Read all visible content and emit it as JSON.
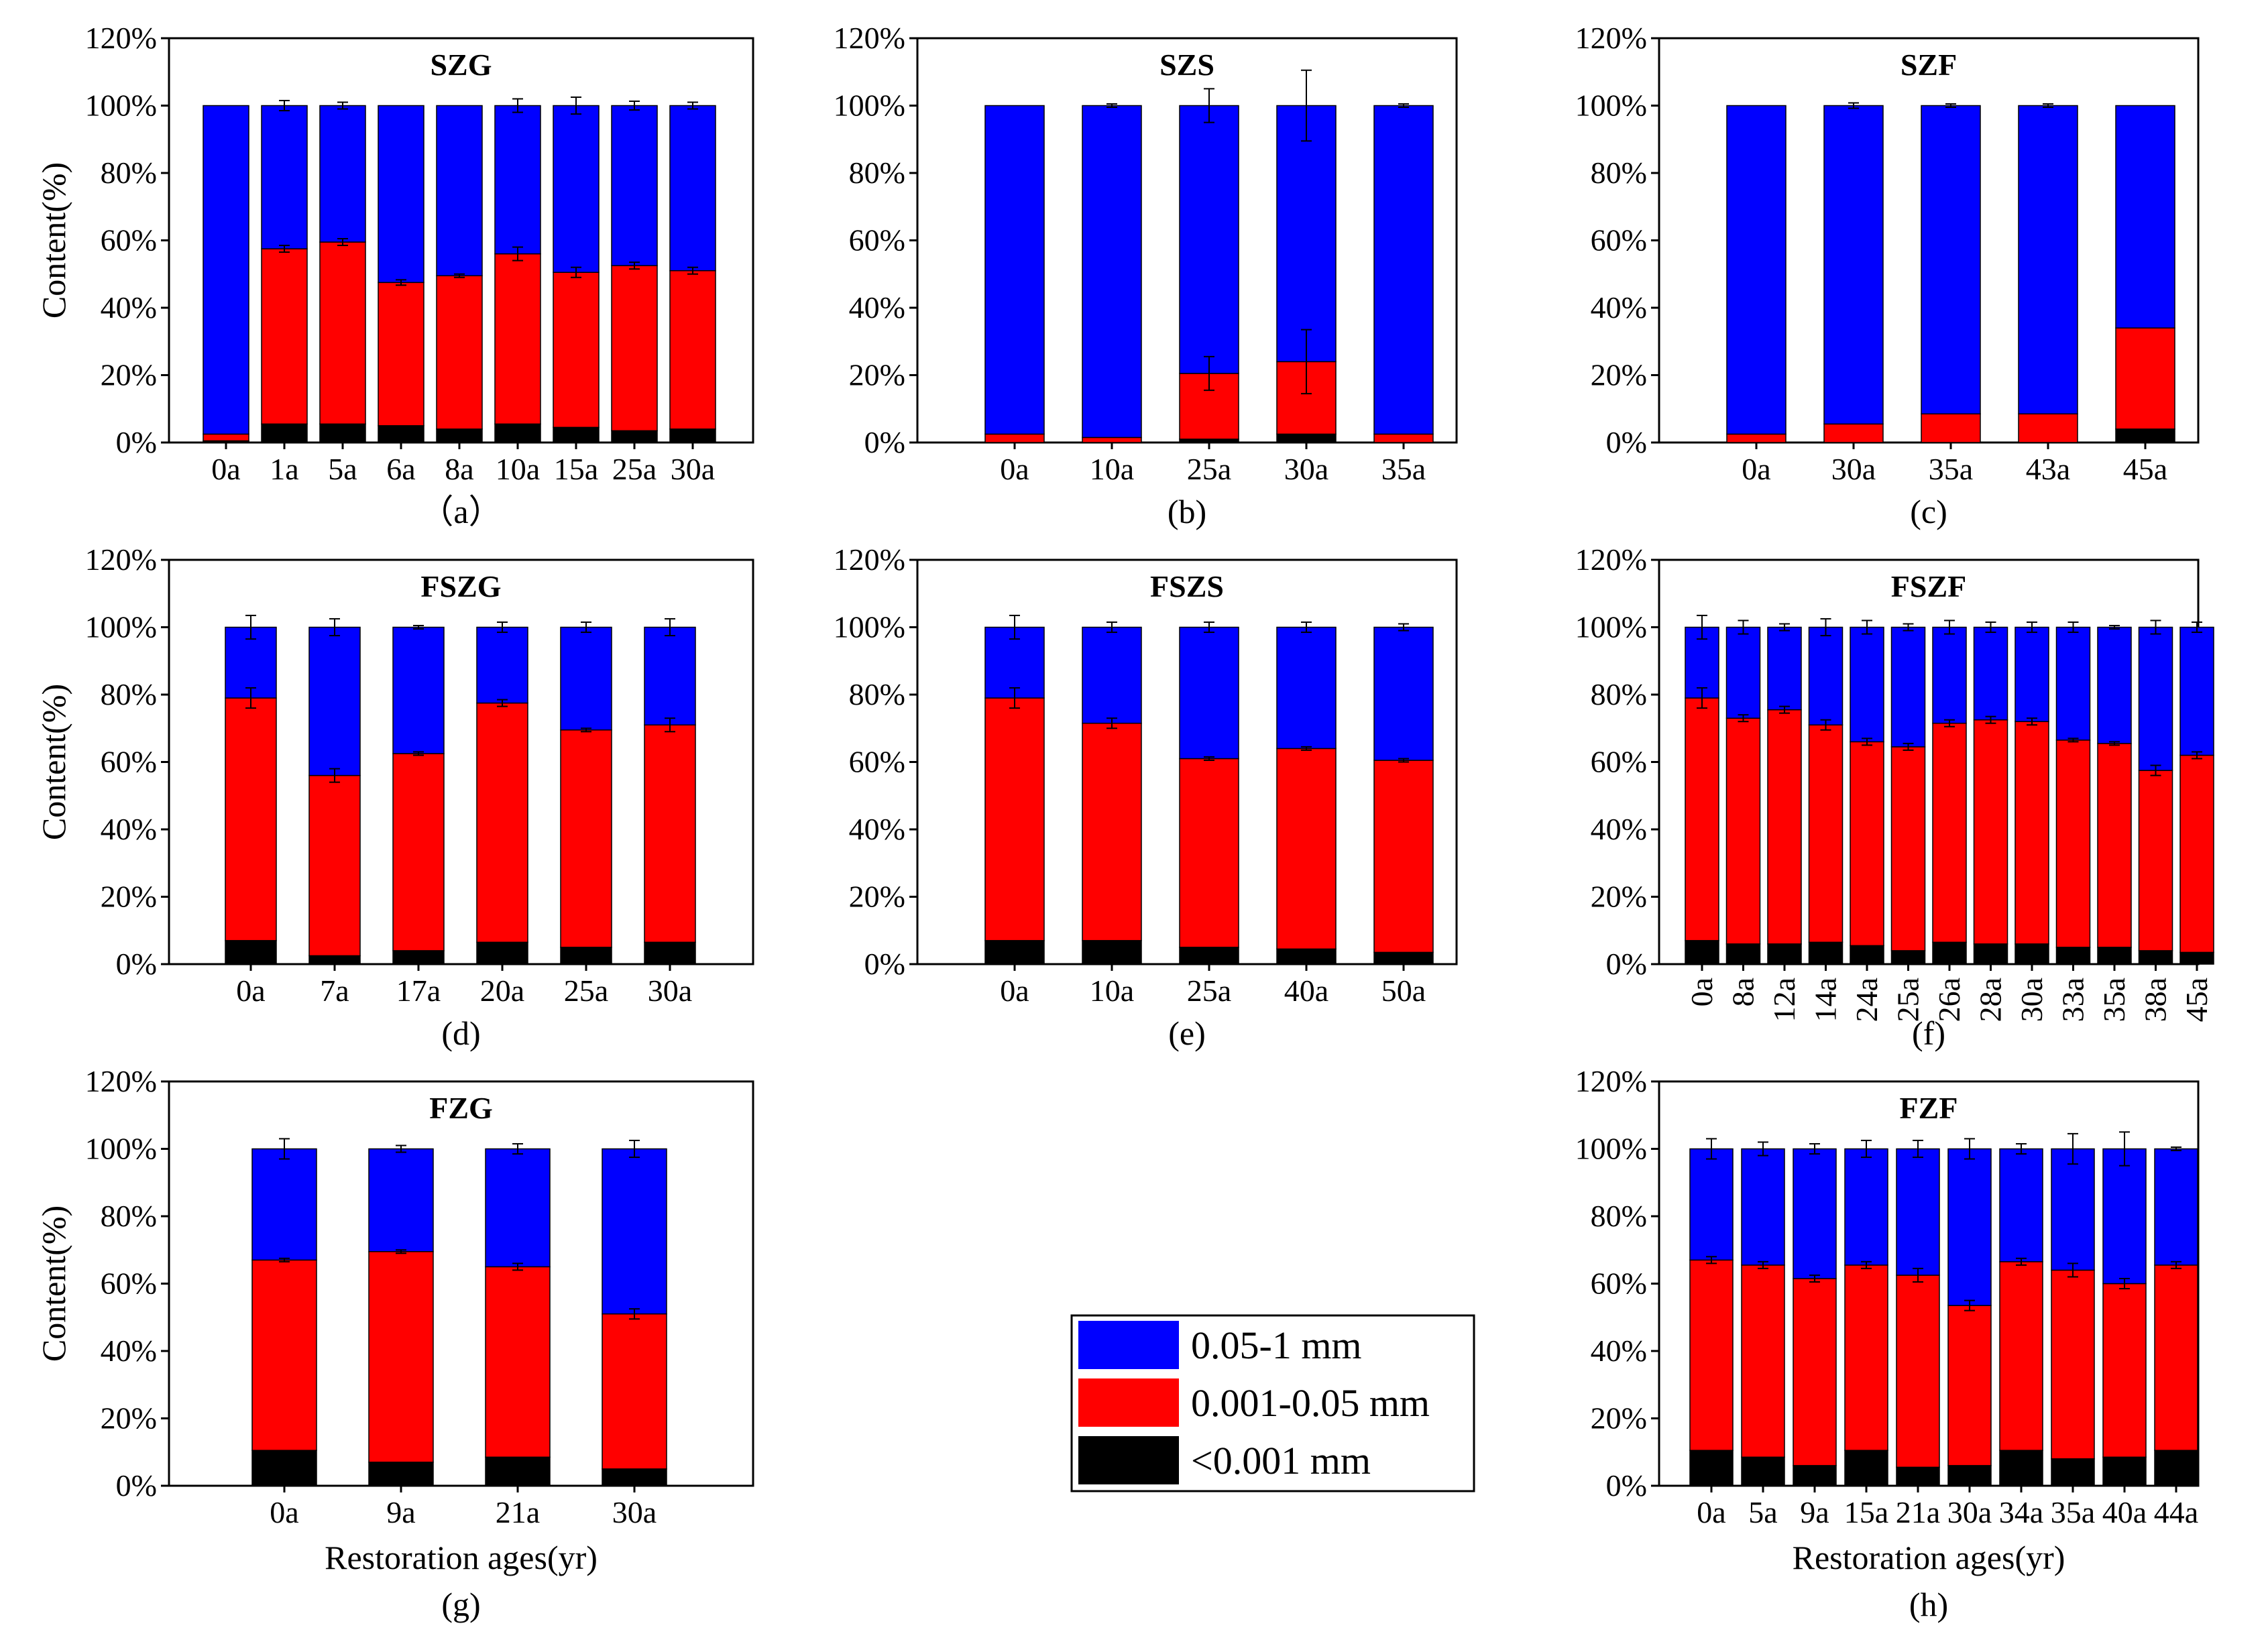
{
  "colors": {
    "fine": "#000000",
    "silt": "#ff0000",
    "sand": "#0000ff",
    "frame": "#000000",
    "background": "#ffffff"
  },
  "yTickLabels": [
    "0%",
    "20%",
    "40%",
    "60%",
    "80%",
    "100%",
    "120%"
  ],
  "ylabel": "Content(%)",
  "xlabel": "Restoration ages(yr)",
  "legend": {
    "items": [
      {
        "label": "0.05-1 mm",
        "color": "#0000ff"
      },
      {
        "label": "0.001-0.05 mm",
        "color": "#ff0000"
      },
      {
        "label": "<0.001 mm",
        "color": "#000000"
      }
    ]
  },
  "chart_data": [
    {
      "type": "bar",
      "stacked": true,
      "title": "SZG",
      "caption": "（a）",
      "ylim": [
        0,
        120
      ],
      "categories": [
        "0a",
        "1a",
        "5a",
        "6a",
        "8a",
        "10a",
        "15a",
        "25a",
        "30a"
      ],
      "series": [
        {
          "name": "<0.001 mm",
          "values": [
            0.5,
            5.5,
            5.5,
            5,
            4,
            5.5,
            4.5,
            3.5,
            4
          ]
        },
        {
          "name": "0.001-0.05 mm",
          "values": [
            2,
            52,
            54,
            42.5,
            45.5,
            50.5,
            46,
            49,
            47
          ]
        },
        {
          "name": "0.05-1 mm",
          "values": [
            97.5,
            42.5,
            40.5,
            52.5,
            50.5,
            44,
            49.5,
            47.5,
            49
          ]
        }
      ],
      "error_top": [
        0,
        1.5,
        1,
        0,
        0,
        2,
        2.5,
        1.3,
        1
      ],
      "error_mid": [
        0,
        1,
        1,
        0.8,
        0.5,
        2,
        1.5,
        1,
        1
      ]
    },
    {
      "type": "bar",
      "stacked": true,
      "title": "SZS",
      "caption": "(b)",
      "ylim": [
        0,
        120
      ],
      "categories": [
        "0a",
        "10a",
        "25a",
        "30a",
        "35a"
      ],
      "series": [
        {
          "name": "<0.001 mm",
          "values": [
            0,
            0,
            1,
            2.5,
            0
          ]
        },
        {
          "name": "0.001-0.05 mm",
          "values": [
            2.5,
            1.5,
            19.5,
            21.5,
            2.5
          ]
        },
        {
          "name": "0.05-1 mm",
          "values": [
            97.5,
            98.5,
            79.5,
            76,
            97.5
          ]
        }
      ],
      "error_top": [
        0,
        0.5,
        5,
        10.5,
        0.5
      ],
      "error_mid": [
        0,
        0,
        5,
        9.5,
        0
      ]
    },
    {
      "type": "bar",
      "stacked": true,
      "title": "SZF",
      "caption": "(c)",
      "ylim": [
        0,
        120
      ],
      "categories": [
        "0a",
        "30a",
        "35a",
        "43a",
        "45a"
      ],
      "series": [
        {
          "name": "<0.001 mm",
          "values": [
            0,
            0,
            0,
            0,
            4
          ]
        },
        {
          "name": "0.001-0.05 mm",
          "values": [
            2.5,
            5.5,
            8.5,
            8.5,
            30
          ]
        },
        {
          "name": "0.05-1 mm",
          "values": [
            97.5,
            94.5,
            91.5,
            91.5,
            66
          ]
        }
      ],
      "error_top": [
        0,
        0.8,
        0.5,
        0.5,
        0
      ],
      "error_mid": [
        0,
        0,
        0,
        0,
        0
      ]
    },
    {
      "type": "bar",
      "stacked": true,
      "title": "FSZG",
      "caption": "(d)",
      "ylim": [
        0,
        120
      ],
      "categories": [
        "0a",
        "7a",
        "17a",
        "20a",
        "25a",
        "30a"
      ],
      "series": [
        {
          "name": "<0.001 mm",
          "values": [
            7,
            2.5,
            4,
            6.5,
            5,
            6.5
          ]
        },
        {
          "name": "0.001-0.05 mm",
          "values": [
            72,
            53.5,
            58.5,
            71,
            64.5,
            64.5
          ]
        },
        {
          "name": "0.05-1 mm",
          "values": [
            21,
            44,
            37.5,
            22.5,
            30.5,
            29
          ]
        }
      ],
      "error_top": [
        3.5,
        2.5,
        0.5,
        1.5,
        1.5,
        2.5
      ],
      "error_mid": [
        3,
        2,
        0.5,
        1,
        0.5,
        2
      ]
    },
    {
      "type": "bar",
      "stacked": true,
      "title": "FSZS",
      "caption": "(e)",
      "ylim": [
        0,
        120
      ],
      "categories": [
        "0a",
        "10a",
        "25a",
        "40a",
        "50a"
      ],
      "series": [
        {
          "name": "<0.001 mm",
          "values": [
            7,
            7,
            5,
            4.5,
            3.5
          ]
        },
        {
          "name": "0.001-0.05 mm",
          "values": [
            72,
            64.5,
            56,
            59.5,
            57
          ]
        },
        {
          "name": "0.05-1 mm",
          "values": [
            21,
            28.5,
            39,
            36,
            39.5
          ]
        }
      ],
      "error_top": [
        3.5,
        1.5,
        1.5,
        1.5,
        1
      ],
      "error_mid": [
        3,
        1.5,
        0.5,
        0.5,
        0.5
      ]
    },
    {
      "type": "bar",
      "stacked": true,
      "title": "FSZF",
      "caption": "(f)",
      "ylim": [
        0,
        120
      ],
      "x_tick_rotation": -90,
      "categories": [
        "0a",
        "8a",
        "12a",
        "14a",
        "24a",
        "25a",
        "26a",
        "28a",
        "30a",
        "33a",
        "35a",
        "38a",
        "45a"
      ],
      "series": [
        {
          "name": "<0.001 mm",
          "values": [
            7,
            6,
            6,
            6.5,
            5.5,
            4,
            6.5,
            6,
            6,
            5,
            5,
            4,
            3.5
          ]
        },
        {
          "name": "0.001-0.05 mm",
          "values": [
            72,
            67,
            69.5,
            64.5,
            60.5,
            60.5,
            65,
            66.5,
            66,
            61.5,
            60.5,
            53.5,
            58.5
          ]
        },
        {
          "name": "0.05-1 mm",
          "values": [
            21,
            27,
            24.5,
            29,
            34,
            35.5,
            28.5,
            27.5,
            28,
            33.5,
            34.5,
            42.5,
            38
          ]
        }
      ],
      "error_top": [
        3.5,
        2,
        1,
        2.5,
        2,
        1,
        2,
        1.5,
        1.5,
        1.5,
        0.5,
        2,
        1.5
      ],
      "error_mid": [
        3,
        1,
        1,
        1.5,
        1,
        1,
        1,
        1,
        1,
        0.5,
        0.5,
        1.5,
        1
      ]
    },
    {
      "type": "bar",
      "stacked": true,
      "title": "FZG",
      "caption": "(g)",
      "ylim": [
        0,
        120
      ],
      "xlabel": "Restoration ages(yr)",
      "categories": [
        "0a",
        "9a",
        "21a",
        "30a"
      ],
      "series": [
        {
          "name": "<0.001 mm",
          "values": [
            10.5,
            7,
            8.5,
            5
          ]
        },
        {
          "name": "0.001-0.05 mm",
          "values": [
            56.5,
            62.5,
            56.5,
            46
          ]
        },
        {
          "name": "0.05-1 mm",
          "values": [
            33,
            30.5,
            35,
            49
          ]
        }
      ],
      "error_top": [
        3,
        1,
        1.5,
        2.5
      ],
      "error_mid": [
        0.5,
        0.5,
        1,
        1.5
      ]
    },
    {
      "type": "bar",
      "stacked": true,
      "title": "FZF",
      "caption": "(h)",
      "ylim": [
        0,
        120
      ],
      "xlabel": "Restoration ages(yr)",
      "categories": [
        "0a",
        "5a",
        "9a",
        "15a",
        "21a",
        "30a",
        "34a",
        "35a",
        "40a",
        "44a"
      ],
      "series": [
        {
          "name": "<0.001 mm",
          "values": [
            10.5,
            8.5,
            6,
            10.5,
            5.5,
            6,
            10.5,
            8,
            8.5,
            10.5
          ]
        },
        {
          "name": "0.001-0.05 mm",
          "values": [
            56.5,
            57,
            55.5,
            55,
            57,
            47.5,
            56,
            56,
            51.5,
            55
          ]
        },
        {
          "name": "0.05-1 mm",
          "values": [
            33,
            34.5,
            38.5,
            34.5,
            37.5,
            46.5,
            33.5,
            36,
            40,
            34.5
          ]
        }
      ],
      "error_top": [
        3,
        2,
        1.5,
        2.5,
        2.5,
        3,
        1.5,
        4.5,
        5,
        0.5
      ],
      "error_mid": [
        1,
        1,
        1,
        1,
        2,
        1.5,
        1,
        2,
        1.5,
        1
      ]
    }
  ]
}
